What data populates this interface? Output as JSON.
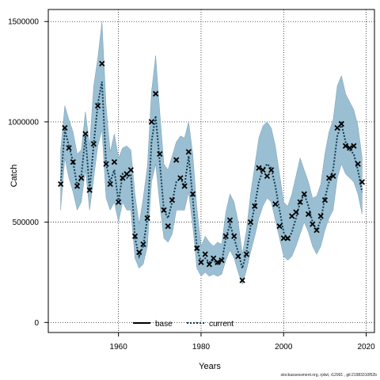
{
  "chart_data": {
    "type": "line",
    "title": "",
    "xlabel": "Years",
    "ylabel": "Catch",
    "xlim": [
      1943,
      2022
    ],
    "ylim": [
      -50000,
      1560000
    ],
    "x_ticks": [
      1960,
      1980,
      2000,
      2020
    ],
    "y_ticks": [
      0,
      500000,
      1000000,
      1500000
    ],
    "x_tick_labels": [
      "1960",
      "1980",
      "2000",
      "2020"
    ],
    "y_tick_labels": [
      "0",
      "500000",
      "1000000",
      "1500000"
    ],
    "grid": true,
    "grid_style": "dotted",
    "legend_position": "bottom-center",
    "colors": {
      "band": "#9bbfd2",
      "band_edge": "#7a9fb3",
      "current": "#0d3b55",
      "base": "#000000",
      "points": "#000000"
    },
    "legend": [
      {
        "label": "base",
        "style": "solid"
      },
      {
        "label": "current",
        "style": "dotted"
      }
    ],
    "x": [
      1946,
      1947,
      1948,
      1949,
      1950,
      1951,
      1952,
      1953,
      1954,
      1955,
      1956,
      1957,
      1958,
      1959,
      1960,
      1961,
      1962,
      1963,
      1964,
      1965,
      1966,
      1967,
      1968,
      1969,
      1970,
      1971,
      1972,
      1973,
      1974,
      1975,
      1976,
      1977,
      1978,
      1979,
      1980,
      1981,
      1982,
      1983,
      1984,
      1985,
      1986,
      1987,
      1988,
      1989,
      1990,
      1991,
      1992,
      1993,
      1994,
      1995,
      1996,
      1997,
      1998,
      1999,
      2000,
      2001,
      2002,
      2003,
      2004,
      2005,
      2006,
      2007,
      2008,
      2009,
      2010,
      2011,
      2012,
      2013,
      2014,
      2015,
      2016,
      2017,
      2018,
      2019
    ],
    "series": [
      {
        "name": "current",
        "role": "line",
        "values": [
          690000,
          960000,
          880000,
          800000,
          680000,
          730000,
          930000,
          660000,
          890000,
          1090000,
          1200000,
          790000,
          700000,
          760000,
          600000,
          740000,
          720000,
          740000,
          420000,
          330000,
          380000,
          520000,
          900000,
          1030000,
          800000,
          560000,
          520000,
          600000,
          700000,
          720000,
          680000,
          830000,
          620000,
          370000,
          300000,
          320000,
          300000,
          310000,
          290000,
          300000,
          420000,
          490000,
          420000,
          350000,
          270000,
          350000,
          480000,
          580000,
          700000,
          760000,
          790000,
          770000,
          680000,
          560000,
          450000,
          410000,
          450000,
          520000,
          600000,
          640000,
          580000,
          500000,
          460000,
          510000,
          620000,
          700000,
          760000,
          930000,
          990000,
          900000,
          860000,
          840000,
          760000,
          650000
        ]
      },
      {
        "name": "",
        "role": "band_upper",
        "values": [
          860000,
          1080000,
          1010000,
          950000,
          840000,
          860000,
          1050000,
          880000,
          1180000,
          1320000,
          1500000,
          1080000,
          850000,
          940000,
          820000,
          870000,
          880000,
          860000,
          640000,
          490000,
          620000,
          780000,
          1150000,
          1330000,
          1050000,
          790000,
          760000,
          830000,
          900000,
          930000,
          920000,
          1000000,
          840000,
          570000,
          380000,
          430000,
          400000,
          380000,
          400000,
          390000,
          550000,
          640000,
          600000,
          500000,
          340000,
          460000,
          640000,
          780000,
          920000,
          980000,
          1000000,
          970000,
          880000,
          740000,
          600000,
          580000,
          640000,
          730000,
          820000,
          760000,
          700000,
          620000,
          630000,
          690000,
          840000,
          950000,
          1010000,
          1180000,
          1230000,
          1140000,
          1100000,
          1060000,
          980000,
          820000
        ]
      },
      {
        "name": "",
        "role": "band_lower",
        "values": [
          560000,
          820000,
          720000,
          650000,
          560000,
          600000,
          760000,
          560000,
          720000,
          880000,
          960000,
          620000,
          560000,
          600000,
          500000,
          600000,
          560000,
          560000,
          320000,
          270000,
          290000,
          380000,
          700000,
          790000,
          590000,
          420000,
          400000,
          440000,
          560000,
          560000,
          560000,
          650000,
          480000,
          270000,
          230000,
          250000,
          230000,
          240000,
          230000,
          240000,
          310000,
          360000,
          320000,
          250000,
          190000,
          260000,
          350000,
          430000,
          520000,
          580000,
          620000,
          600000,
          510000,
          420000,
          330000,
          310000,
          330000,
          380000,
          440000,
          500000,
          450000,
          380000,
          340000,
          380000,
          460000,
          520000,
          560000,
          720000,
          790000,
          740000,
          720000,
          700000,
          640000,
          540000
        ]
      },
      {
        "name": "",
        "role": "points",
        "values": [
          690000,
          970000,
          870000,
          800000,
          680000,
          720000,
          940000,
          660000,
          890000,
          1080000,
          1290000,
          790000,
          690000,
          800000,
          600000,
          720000,
          740000,
          760000,
          430000,
          350000,
          390000,
          520000,
          1000000,
          1140000,
          840000,
          560000,
          480000,
          610000,
          810000,
          720000,
          680000,
          850000,
          640000,
          370000,
          300000,
          340000,
          290000,
          320000,
          300000,
          310000,
          430000,
          510000,
          430000,
          330000,
          210000,
          340000,
          500000,
          580000,
          770000,
          760000,
          730000,
          760000,
          590000,
          480000,
          420000,
          420000,
          530000,
          550000,
          600000,
          640000,
          540000,
          490000,
          460000,
          530000,
          610000,
          720000,
          730000,
          970000,
          990000,
          880000,
          870000,
          880000,
          790000,
          700000
        ]
      }
    ]
  },
  "footer": "stockassessment.org, rplwt, r12991 , git:21983310f52b"
}
